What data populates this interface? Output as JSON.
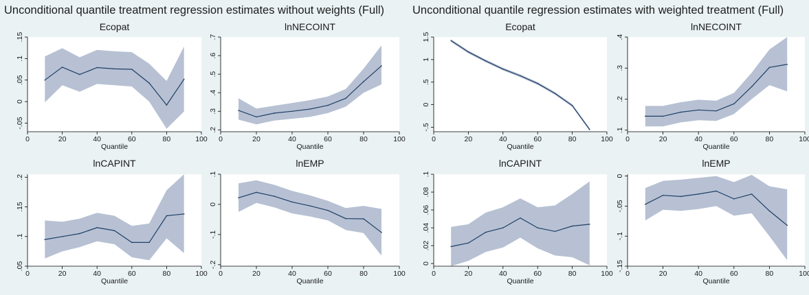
{
  "group_titles": [
    "Unconditional quantile treatment regression estimates without weights (Full)",
    "Unconditional quantile regression estimates with weighted treatment (Full)"
  ],
  "colors": {
    "background": "#eaf2f3",
    "plot_background": "#ffffff",
    "band": "#b7c1d3",
    "line": "#1f3f66",
    "axis": "#000000"
  },
  "chart_data": [
    {
      "type": "line",
      "group": 0,
      "title": "Ecopat",
      "xlabel": "Quantile",
      "xlim": [
        0,
        100
      ],
      "ylim": [
        -0.07,
        0.15
      ],
      "xticks": [
        "0",
        "20",
        "40",
        "60",
        "80",
        "100"
      ],
      "ytick_values": [
        -0.05,
        0,
        0.05,
        0.1,
        0.15
      ],
      "ytick_labels": [
        "-.05",
        "0",
        ".05",
        ".1",
        ".15"
      ],
      "x": [
        10,
        20,
        30,
        40,
        50,
        60,
        70,
        80,
        90
      ],
      "estimate": [
        0.05,
        0.08,
        0.063,
        0.079,
        0.076,
        0.075,
        0.043,
        -0.008,
        0.052
      ],
      "ci_upper": [
        0.105,
        0.124,
        0.103,
        0.12,
        0.117,
        0.115,
        0.088,
        0.048,
        0.128
      ],
      "ci_lower": [
        -0.002,
        0.038,
        0.023,
        0.041,
        0.038,
        0.035,
        0.0,
        -0.063,
        -0.023
      ]
    },
    {
      "type": "line",
      "group": 0,
      "title": "lnNECOINT",
      "xlabel": "Quantile",
      "xlim": [
        0,
        100
      ],
      "ylim": [
        0.19,
        0.7
      ],
      "xticks": [
        "0",
        "20",
        "40",
        "60",
        "80",
        "100"
      ],
      "ytick_values": [
        0.2,
        0.3,
        0.4,
        0.5,
        0.6,
        0.7
      ],
      "ytick_labels": [
        ".2",
        ".3",
        ".4",
        ".5",
        ".6",
        ".7"
      ],
      "x": [
        10,
        20,
        30,
        40,
        50,
        60,
        70,
        80,
        90
      ],
      "estimate": [
        0.305,
        0.27,
        0.29,
        0.3,
        0.312,
        0.332,
        0.37,
        0.46,
        0.545
      ],
      "ci_upper": [
        0.37,
        0.315,
        0.33,
        0.345,
        0.36,
        0.38,
        0.42,
        0.53,
        0.655
      ],
      "ci_lower": [
        0.255,
        0.23,
        0.25,
        0.26,
        0.27,
        0.29,
        0.325,
        0.4,
        0.445
      ]
    },
    {
      "type": "line",
      "group": 0,
      "title": "lnCAPINT",
      "xlabel": "Quantile",
      "xlim": [
        0,
        100
      ],
      "ylim": [
        0.05,
        0.205
      ],
      "xticks": [
        "0",
        "20",
        "40",
        "60",
        "80",
        "100"
      ],
      "ytick_values": [
        0.05,
        0.1,
        0.15,
        0.2
      ],
      "ytick_labels": [
        ".05",
        ".1",
        ".15",
        ".2"
      ],
      "x": [
        10,
        20,
        30,
        40,
        50,
        60,
        70,
        80,
        90
      ],
      "estimate": [
        0.095,
        0.1,
        0.105,
        0.115,
        0.11,
        0.09,
        0.09,
        0.135,
        0.138
      ],
      "ci_upper": [
        0.127,
        0.125,
        0.13,
        0.14,
        0.135,
        0.118,
        0.122,
        0.178,
        0.205
      ],
      "ci_lower": [
        0.063,
        0.075,
        0.082,
        0.092,
        0.087,
        0.065,
        0.06,
        0.097,
        0.072
      ]
    },
    {
      "type": "line",
      "group": 0,
      "title": "lnEMP",
      "xlabel": "Quantile",
      "xlim": [
        0,
        100
      ],
      "ylim": [
        -0.205,
        0.1
      ],
      "xticks": [
        "0",
        "20",
        "40",
        "60",
        "80",
        "100"
      ],
      "ytick_values": [
        -0.2,
        -0.1,
        0,
        0.1
      ],
      "ytick_labels": [
        "-.2",
        "-.1",
        "0",
        ".1"
      ],
      "x": [
        10,
        20,
        30,
        40,
        50,
        60,
        70,
        80,
        90
      ],
      "estimate": [
        0.022,
        0.04,
        0.027,
        0.008,
        -0.005,
        -0.02,
        -0.047,
        -0.048,
        -0.093
      ],
      "ci_upper": [
        0.07,
        0.08,
        0.065,
        0.045,
        0.03,
        0.012,
        -0.012,
        -0.005,
        -0.015
      ],
      "ci_lower": [
        -0.025,
        0.005,
        -0.01,
        -0.03,
        -0.04,
        -0.053,
        -0.085,
        -0.095,
        -0.17
      ]
    },
    {
      "type": "line",
      "group": 1,
      "title": "Ecopat",
      "xlabel": "Quantile",
      "xlim": [
        0,
        100
      ],
      "ylim": [
        -0.6,
        1.5
      ],
      "xticks": [
        "0",
        "20",
        "40",
        "60",
        "80",
        "100"
      ],
      "ytick_values": [
        -0.5,
        0,
        0.5,
        1,
        1.5
      ],
      "ytick_labels": [
        "-.5",
        "0",
        ".5",
        "1",
        "1.5"
      ],
      "x": [
        10,
        20,
        30,
        40,
        50,
        60,
        70,
        80,
        90
      ],
      "estimate": [
        1.42,
        1.17,
        0.97,
        0.79,
        0.64,
        0.47,
        0.25,
        -0.02,
        -0.55
      ],
      "ci_upper": [
        1.45,
        1.2,
        1.0,
        0.82,
        0.67,
        0.5,
        0.28,
        0.01,
        -0.52
      ],
      "ci_lower": [
        1.39,
        1.14,
        0.94,
        0.76,
        0.61,
        0.44,
        0.22,
        -0.05,
        -0.58
      ]
    },
    {
      "type": "line",
      "group": 1,
      "title": "lnNECOINT",
      "xlabel": "Quantile",
      "xlim": [
        0,
        100
      ],
      "ylim": [
        0.095,
        0.4
      ],
      "xticks": [
        "0",
        "20",
        "40",
        "60",
        "80",
        "100"
      ],
      "ytick_values": [
        0.1,
        0.2,
        0.3,
        0.4
      ],
      "ytick_labels": [
        ".1",
        ".2",
        ".3",
        ".4"
      ],
      "x": [
        10,
        20,
        30,
        40,
        50,
        60,
        70,
        80,
        90
      ],
      "estimate": [
        0.145,
        0.145,
        0.158,
        0.165,
        0.162,
        0.185,
        0.24,
        0.302,
        0.312
      ],
      "ci_upper": [
        0.178,
        0.178,
        0.19,
        0.198,
        0.195,
        0.22,
        0.285,
        0.36,
        0.4
      ],
      "ci_lower": [
        0.112,
        0.112,
        0.125,
        0.132,
        0.13,
        0.152,
        0.2,
        0.245,
        0.225
      ]
    },
    {
      "type": "line",
      "group": 1,
      "title": "lnCAPINT",
      "xlabel": "Quantile",
      "xlim": [
        0,
        100
      ],
      "ylim": [
        -0.003,
        0.1
      ],
      "xticks": [
        "0",
        "20",
        "40",
        "60",
        "80",
        "100"
      ],
      "ytick_values": [
        0,
        0.02,
        0.04,
        0.06,
        0.08,
        0.1
      ],
      "ytick_labels": [
        "0",
        ".02",
        ".04",
        ".06",
        ".08",
        ".1"
      ],
      "x": [
        10,
        20,
        30,
        40,
        50,
        60,
        70,
        80,
        90
      ],
      "estimate": [
        0.019,
        0.023,
        0.035,
        0.04,
        0.051,
        0.04,
        0.036,
        0.042,
        0.044
      ],
      "ci_upper": [
        0.041,
        0.044,
        0.057,
        0.063,
        0.073,
        0.063,
        0.065,
        0.078,
        0.092
      ],
      "ci_lower": [
        -0.003,
        0.003,
        0.013,
        0.018,
        0.029,
        0.017,
        0.009,
        0.007,
        -0.002
      ]
    },
    {
      "type": "line",
      "group": 1,
      "title": "lnEMP",
      "xlabel": "Quantile",
      "xlim": [
        0,
        100
      ],
      "ylim": [
        -0.15,
        0.003
      ],
      "xticks": [
        "0",
        "20",
        "40",
        "60",
        "80",
        "100"
      ],
      "ytick_values": [
        -0.15,
        -0.1,
        -0.05,
        0
      ],
      "ytick_labels": [
        "-.15",
        "-.1",
        "-.05",
        "0"
      ],
      "x": [
        10,
        20,
        30,
        40,
        50,
        60,
        70,
        80,
        90
      ],
      "estimate": [
        -0.047,
        -0.032,
        -0.034,
        -0.03,
        -0.025,
        -0.038,
        -0.03,
        -0.058,
        -0.082
      ],
      "ci_upper": [
        -0.02,
        -0.008,
        -0.006,
        -0.003,
        0.0,
        -0.01,
        0.002,
        -0.017,
        -0.022
      ],
      "ci_lower": [
        -0.074,
        -0.056,
        -0.058,
        -0.055,
        -0.05,
        -0.066,
        -0.062,
        -0.1,
        -0.14
      ]
    }
  ]
}
